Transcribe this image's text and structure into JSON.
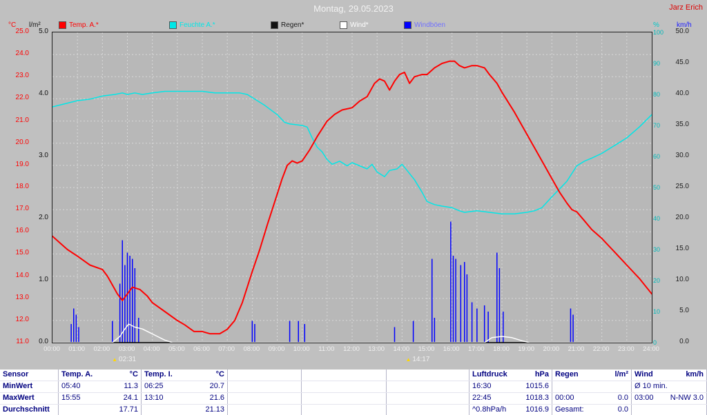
{
  "window": {
    "title": "Montag, 29.05.2023",
    "watermark": "Jarz Erich"
  },
  "legend": {
    "left_axis_1": "°C",
    "left_axis_2": "l/m²",
    "right_axis_1": "%",
    "right_axis_2": "km/h",
    "items": [
      {
        "label": "Temp. A.*",
        "color": "#ff0000",
        "text_color": "#ff0000"
      },
      {
        "label": "Feuchte A.*",
        "color": "#00e7e7",
        "text_color": "#00e7e7"
      },
      {
        "label": "Regen*",
        "color": "#111111",
        "text_color": "#1a1a1a"
      },
      {
        "label": "Wind*",
        "color": "#ffffff",
        "text_color": "#ffffff"
      },
      {
        "label": "Windböen",
        "color": "#0000ff",
        "text_color": "#7070ff"
      }
    ]
  },
  "chart_data": {
    "type": "line",
    "title": "Montag, 29.05.2023",
    "x_unit": "hours",
    "x_range": [
      0,
      24
    ],
    "x_tick_labels": [
      "00:00",
      "01:00",
      "02:00",
      "03:00",
      "04:00",
      "05:00",
      "06:00",
      "07:00",
      "08:00",
      "09:00",
      "10:00",
      "11:00",
      "12:00",
      "13:00",
      "14:00",
      "15:00",
      "16:00",
      "17:00",
      "18:00",
      "19:00",
      "20:00",
      "21:00",
      "22:00",
      "23:00",
      "24:00"
    ],
    "grid": true,
    "axes": {
      "temp_c": {
        "min": 11.0,
        "max": 25.0,
        "step": 1.0,
        "side": "left",
        "color": "#ff0000",
        "unit": "°C",
        "decimals": 1
      },
      "rain_lm2": {
        "min": 0.0,
        "max": 5.0,
        "step": 1.0,
        "side": "left",
        "color": "#111111",
        "unit": "l/m²",
        "decimals": 1
      },
      "humidity_pct": {
        "min": 0,
        "max": 100,
        "step": 10,
        "side": "right",
        "color": "#00b8b8",
        "unit": "%",
        "decimals": 0
      },
      "wind_kmh": {
        "min": 0.0,
        "max": 50.0,
        "step": 5.0,
        "side": "right",
        "color": "#1a1a1a",
        "unit": "km/h",
        "decimals": 1
      }
    },
    "series": [
      {
        "name": "Temp. A.*",
        "axis": "temp_c",
        "color": "#ff0000",
        "width": 2,
        "type": "line",
        "points": [
          [
            0,
            15.8
          ],
          [
            0.3,
            15.5
          ],
          [
            0.6,
            15.2
          ],
          [
            1,
            14.9
          ],
          [
            1.5,
            14.5
          ],
          [
            2,
            14.3
          ],
          [
            2.2,
            14.0
          ],
          [
            2.4,
            13.6
          ],
          [
            2.6,
            13.2
          ],
          [
            2.8,
            12.9
          ],
          [
            3.0,
            13.2
          ],
          [
            3.2,
            13.5
          ],
          [
            3.5,
            13.4
          ],
          [
            3.8,
            13.1
          ],
          [
            4,
            12.8
          ],
          [
            4.5,
            12.4
          ],
          [
            5,
            12.0
          ],
          [
            5.3,
            11.8
          ],
          [
            5.67,
            11.5
          ],
          [
            6,
            11.5
          ],
          [
            6.3,
            11.4
          ],
          [
            6.7,
            11.4
          ],
          [
            7,
            11.6
          ],
          [
            7.3,
            12.0
          ],
          [
            7.6,
            12.8
          ],
          [
            8,
            14.2
          ],
          [
            8.3,
            15.2
          ],
          [
            8.6,
            16.3
          ],
          [
            9,
            17.7
          ],
          [
            9.2,
            18.4
          ],
          [
            9.4,
            19.0
          ],
          [
            9.6,
            19.2
          ],
          [
            9.8,
            19.1
          ],
          [
            10,
            19.2
          ],
          [
            10.3,
            19.7
          ],
          [
            10.6,
            20.3
          ],
          [
            11,
            21.0
          ],
          [
            11.3,
            21.3
          ],
          [
            11.6,
            21.5
          ],
          [
            12,
            21.6
          ],
          [
            12.3,
            21.9
          ],
          [
            12.6,
            22.1
          ],
          [
            12.9,
            22.7
          ],
          [
            13.1,
            22.9
          ],
          [
            13.3,
            22.8
          ],
          [
            13.5,
            22.4
          ],
          [
            13.7,
            22.8
          ],
          [
            13.9,
            23.1
          ],
          [
            14.1,
            23.2
          ],
          [
            14.3,
            22.7
          ],
          [
            14.5,
            23.0
          ],
          [
            14.8,
            23.1
          ],
          [
            15,
            23.1
          ],
          [
            15.3,
            23.4
          ],
          [
            15.6,
            23.6
          ],
          [
            15.9,
            23.7
          ],
          [
            16.1,
            23.7
          ],
          [
            16.3,
            23.5
          ],
          [
            16.5,
            23.4
          ],
          [
            16.8,
            23.5
          ],
          [
            17,
            23.5
          ],
          [
            17.3,
            23.4
          ],
          [
            17.5,
            23.1
          ],
          [
            17.8,
            22.7
          ],
          [
            18,
            22.3
          ],
          [
            18.5,
            21.4
          ],
          [
            19,
            20.4
          ],
          [
            19.5,
            19.4
          ],
          [
            20,
            18.4
          ],
          [
            20.3,
            17.8
          ],
          [
            20.6,
            17.3
          ],
          [
            20.8,
            17.0
          ],
          [
            21,
            16.9
          ],
          [
            21.3,
            16.5
          ],
          [
            21.6,
            16.1
          ],
          [
            22,
            15.7
          ],
          [
            22.5,
            15.1
          ],
          [
            23,
            14.5
          ],
          [
            23.5,
            13.9
          ],
          [
            24,
            13.2
          ]
        ]
      },
      {
        "name": "Feuchte A.*",
        "axis": "humidity_pct",
        "color": "#00e7e7",
        "width": 1.5,
        "type": "line",
        "points": [
          [
            0,
            76
          ],
          [
            0.5,
            77
          ],
          [
            1,
            78
          ],
          [
            1.5,
            78.5
          ],
          [
            2,
            79.5
          ],
          [
            2.5,
            80
          ],
          [
            2.8,
            80.5
          ],
          [
            3,
            80
          ],
          [
            3.3,
            80.5
          ],
          [
            3.6,
            80
          ],
          [
            4,
            80.5
          ],
          [
            4.5,
            81
          ],
          [
            5,
            81
          ],
          [
            5.5,
            81
          ],
          [
            6,
            81
          ],
          [
            6.5,
            80.5
          ],
          [
            7,
            80.5
          ],
          [
            7.5,
            80.5
          ],
          [
            7.8,
            80
          ],
          [
            8,
            79
          ],
          [
            8.5,
            76.5
          ],
          [
            9,
            73.5
          ],
          [
            9.3,
            71
          ],
          [
            9.5,
            70.5
          ],
          [
            10,
            70
          ],
          [
            10.2,
            69.5
          ],
          [
            10.4,
            66
          ],
          [
            10.6,
            63
          ],
          [
            10.8,
            61.5
          ],
          [
            11,
            59
          ],
          [
            11.2,
            57.5
          ],
          [
            11.5,
            58.5
          ],
          [
            11.8,
            57
          ],
          [
            12,
            58
          ],
          [
            12.3,
            57
          ],
          [
            12.6,
            56
          ],
          [
            12.8,
            57.5
          ],
          [
            13,
            55
          ],
          [
            13.3,
            53.5
          ],
          [
            13.5,
            55.5
          ],
          [
            13.8,
            56
          ],
          [
            14,
            57.5
          ],
          [
            14.2,
            55.5
          ],
          [
            14.5,
            52.5
          ],
          [
            14.8,
            48.5
          ],
          [
            15,
            45.5
          ],
          [
            15.3,
            44.5
          ],
          [
            15.6,
            44
          ],
          [
            16,
            43.5
          ],
          [
            16.3,
            42.5
          ],
          [
            16.5,
            42
          ],
          [
            17,
            42.5
          ],
          [
            17.5,
            42
          ],
          [
            18,
            41.5
          ],
          [
            18.5,
            41.5
          ],
          [
            19,
            42
          ],
          [
            19.3,
            42.5
          ],
          [
            19.6,
            43.5
          ],
          [
            20,
            47
          ],
          [
            20.3,
            49.5
          ],
          [
            20.6,
            52
          ],
          [
            21,
            57
          ],
          [
            21.3,
            58.5
          ],
          [
            21.6,
            59.5
          ],
          [
            22,
            61
          ],
          [
            22.5,
            63.5
          ],
          [
            23,
            66
          ],
          [
            23.5,
            69.5
          ],
          [
            24,
            73.5
          ]
        ]
      },
      {
        "name": "Regen*",
        "axis": "rain_lm2",
        "color": "#111111",
        "width": 1.5,
        "type": "line",
        "points": [
          [
            0,
            0
          ],
          [
            24,
            0
          ]
        ]
      },
      {
        "name": "Wind*",
        "axis": "wind_kmh",
        "color": "#ffffff",
        "width": 1.5,
        "type": "line",
        "points": [
          [
            0,
            0
          ],
          [
            2.4,
            0
          ],
          [
            2.7,
            1.0
          ],
          [
            2.9,
            2.2
          ],
          [
            3.05,
            3.0
          ],
          [
            3.3,
            2.5
          ],
          [
            3.6,
            2.2
          ],
          [
            3.9,
            1.6
          ],
          [
            4.2,
            1.0
          ],
          [
            4.5,
            0.4
          ],
          [
            4.8,
            0
          ],
          [
            17.3,
            0
          ],
          [
            17.6,
            0.8
          ],
          [
            18,
            1.0
          ],
          [
            18.4,
            0.8
          ],
          [
            18.8,
            0.3
          ],
          [
            19.1,
            0
          ],
          [
            24,
            0
          ]
        ]
      },
      {
        "name": "Windböen",
        "axis": "wind_kmh",
        "color": "#0000ff",
        "width": 1.5,
        "type": "spikes",
        "points": [
          [
            0.75,
            3
          ],
          [
            0.85,
            5.5
          ],
          [
            0.95,
            4.5
          ],
          [
            1.05,
            2.5
          ],
          [
            2.4,
            3.5
          ],
          [
            2.7,
            9.5
          ],
          [
            2.8,
            16.5
          ],
          [
            2.9,
            12.5
          ],
          [
            3.0,
            14.5
          ],
          [
            3.1,
            14
          ],
          [
            3.2,
            13.5
          ],
          [
            3.3,
            12
          ],
          [
            3.45,
            4
          ],
          [
            8.0,
            3.5
          ],
          [
            8.1,
            3
          ],
          [
            9.5,
            3.5
          ],
          [
            9.85,
            3.5
          ],
          [
            10.1,
            3
          ],
          [
            13.7,
            2.5
          ],
          [
            14.45,
            3.5
          ],
          [
            15.2,
            13.5
          ],
          [
            15.3,
            4
          ],
          [
            15.95,
            19.5
          ],
          [
            16.05,
            14
          ],
          [
            16.15,
            13.5
          ],
          [
            16.35,
            12.5
          ],
          [
            16.5,
            13
          ],
          [
            16.6,
            11
          ],
          [
            16.8,
            6.5
          ],
          [
            17.0,
            5.5
          ],
          [
            17.3,
            6
          ],
          [
            17.45,
            5
          ],
          [
            17.8,
            14.5
          ],
          [
            17.9,
            12
          ],
          [
            18.05,
            5
          ],
          [
            20.75,
            5.5
          ],
          [
            20.85,
            4.5
          ]
        ]
      }
    ],
    "annotations": [
      {
        "label": "02:31",
        "x": 2.52
      },
      {
        "label": "14:17",
        "x": 14.28
      }
    ]
  },
  "table": {
    "row_labels": [
      "Sensor",
      "MinWert",
      "MaxWert",
      "Durchschnitt"
    ],
    "rows": [
      {
        "name": "Sensor",
        "cols": [
          {
            "a": "Temp. A.",
            "b": "°C"
          },
          {
            "a": "Temp. I.",
            "b": "°C"
          },
          {
            "a": "",
            "b": ""
          },
          {
            "a": "",
            "b": ""
          },
          {
            "a": "",
            "b": ""
          },
          {
            "a": "Luftdruck",
            "b": "hPa"
          },
          {
            "a": "Regen",
            "b": "l/m²"
          },
          {
            "a": "Wind",
            "b": "km/h"
          }
        ]
      },
      {
        "name": "MinWert",
        "cols": [
          {
            "a": "05:40",
            "b": "11.3"
          },
          {
            "a": "06:25",
            "b": "20.7"
          },
          {
            "a": "",
            "b": ""
          },
          {
            "a": "",
            "b": ""
          },
          {
            "a": "",
            "b": ""
          },
          {
            "a": "16:30",
            "b": "1015.6"
          },
          {
            "a": "",
            "b": ""
          },
          {
            "a": "Ø 10 min.",
            "b": ""
          }
        ]
      },
      {
        "name": "MaxWert",
        "cols": [
          {
            "a": "15:55",
            "b": "24.1"
          },
          {
            "a": "13:10",
            "b": "21.6"
          },
          {
            "a": "",
            "b": ""
          },
          {
            "a": "",
            "b": ""
          },
          {
            "a": "",
            "b": ""
          },
          {
            "a": "22:45",
            "b": "1018.3"
          },
          {
            "a": "00:00",
            "b": "0.0"
          },
          {
            "a": "03:00",
            "b": "N-NW 3.0"
          }
        ]
      },
      {
        "name": "Durchschnitt",
        "cols": [
          {
            "a": "",
            "b": "17.71"
          },
          {
            "a": "",
            "b": "21.13"
          },
          {
            "a": "",
            "b": ""
          },
          {
            "a": "",
            "b": ""
          },
          {
            "a": "",
            "b": ""
          },
          {
            "a": "^0.8hPa/h",
            "b": "1016.9"
          },
          {
            "a": "Gesamt:",
            "b": "0.0"
          },
          {
            "a": "",
            "b": ""
          }
        ]
      }
    ]
  }
}
